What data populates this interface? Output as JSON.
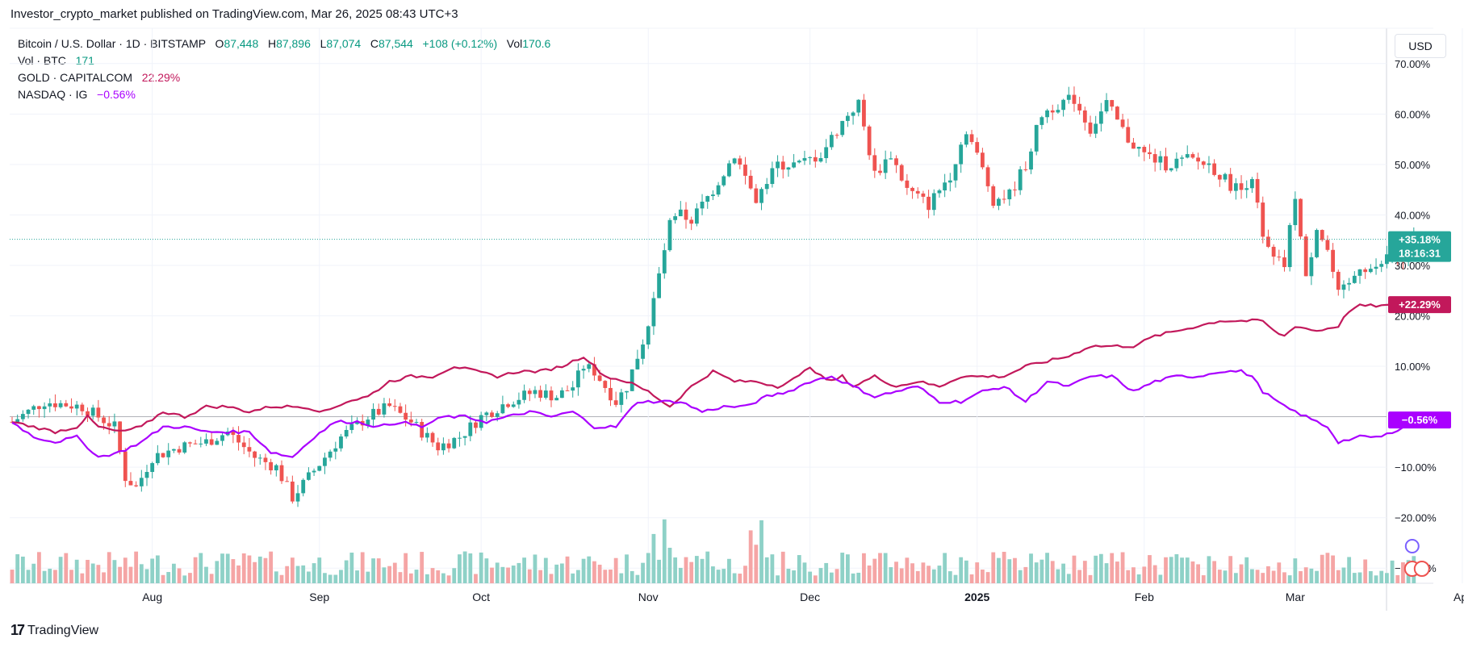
{
  "header": {
    "published_by": "Investor_crypto_market published on TradingView.com, Mar 26, 2025 08:43 UTC+3"
  },
  "legend": {
    "main_symbol": "Bitcoin / U.S. Dollar · 1D · BITSTAMP",
    "open_label": "O",
    "open": "87,448",
    "high_label": "H",
    "high": "87,896",
    "low_label": "L",
    "low": "87,074",
    "close_label": "C",
    "close": "87,544",
    "change": "+108 (+0.12%)",
    "vol_label": "Vol",
    "vol": "170.6",
    "volume_series": "Vol · BTC",
    "volume_value": "171",
    "gold_series": "GOLD · CAPITALCOM",
    "gold_value": "22.29%",
    "nasdaq_series": "NASDAQ · IG",
    "nasdaq_value": "−0.56%"
  },
  "currency_button": "USD",
  "branding": {
    "logo_text": "TradingView"
  },
  "colors": {
    "up": "#26a69a",
    "down": "#ef5350",
    "gold": "#c2185b",
    "nasdaq": "#aa00ff",
    "volume_up": "#8ed1c7",
    "volume_down": "#f5a5a5"
  },
  "chart_data": {
    "type": "candlestick",
    "title": "Bitcoin / U.S. Dollar · 1D · BITSTAMP",
    "ylabel": "Percent change",
    "ylim": [
      -33,
      77
    ],
    "y_ticks": [
      "70.00%",
      "60.00%",
      "50.00%",
      "40.00%",
      "30.00%",
      "20.00%",
      "10.00%",
      "−10.00%",
      "−20.00%",
      "−30.00%"
    ],
    "y_tick_values": [
      70,
      60,
      50,
      40,
      30,
      20,
      10,
      -10,
      -20,
      -30
    ],
    "x_labels": [
      {
        "label": "Aug",
        "day": 26
      },
      {
        "label": "Sep",
        "day": 57
      },
      {
        "label": "Oct",
        "day": 87
      },
      {
        "label": "Nov",
        "day": 118
      },
      {
        "label": "Dec",
        "day": 148
      },
      {
        "label": "2025",
        "day": 179
      },
      {
        "label": "Feb",
        "day": 210
      },
      {
        "label": "Mar",
        "day": 238
      },
      {
        "label": "Apr",
        "day": 269
      }
    ],
    "total_days": 254,
    "price_keyframes": [
      [
        0,
        -1
      ],
      [
        6,
        3
      ],
      [
        13,
        2
      ],
      [
        19,
        -2
      ],
      [
        21,
        -12
      ],
      [
        23,
        -14
      ],
      [
        26,
        -8
      ],
      [
        31,
        -6
      ],
      [
        36,
        -5
      ],
      [
        40,
        -3
      ],
      [
        45,
        -8
      ],
      [
        49,
        -10
      ],
      [
        52,
        -16
      ],
      [
        55,
        -12
      ],
      [
        58,
        -8
      ],
      [
        61,
        -4
      ],
      [
        66,
        0
      ],
      [
        70,
        2
      ],
      [
        74,
        -1
      ],
      [
        79,
        -6
      ],
      [
        83,
        -4
      ],
      [
        87,
        0
      ],
      [
        92,
        3
      ],
      [
        97,
        5
      ],
      [
        101,
        4
      ],
      [
        104,
        6
      ],
      [
        106,
        10
      ],
      [
        108,
        9
      ],
      [
        110,
        6
      ],
      [
        112,
        3
      ],
      [
        114,
        6
      ],
      [
        116,
        12
      ],
      [
        118,
        18
      ],
      [
        120,
        28
      ],
      [
        122,
        38
      ],
      [
        124,
        40
      ],
      [
        126,
        39
      ],
      [
        130,
        45
      ],
      [
        134,
        52
      ],
      [
        138,
        43
      ],
      [
        142,
        50
      ],
      [
        146,
        50
      ],
      [
        150,
        52
      ],
      [
        155,
        60
      ],
      [
        157,
        62
      ],
      [
        160,
        48
      ],
      [
        163,
        52
      ],
      [
        166,
        45
      ],
      [
        170,
        42
      ],
      [
        174,
        48
      ],
      [
        177,
        57
      ],
      [
        180,
        49
      ],
      [
        182,
        43
      ],
      [
        185,
        44
      ],
      [
        188,
        50
      ],
      [
        191,
        60
      ],
      [
        194,
        62
      ],
      [
        197,
        63
      ],
      [
        200,
        57
      ],
      [
        203,
        62
      ],
      [
        207,
        55
      ],
      [
        210,
        52
      ],
      [
        214,
        50
      ],
      [
        218,
        51
      ],
      [
        222,
        50
      ],
      [
        226,
        46
      ],
      [
        228,
        45
      ],
      [
        230,
        48
      ],
      [
        232,
        35
      ],
      [
        234,
        31
      ],
      [
        236,
        30
      ],
      [
        238,
        44
      ],
      [
        240,
        27
      ],
      [
        242,
        38
      ],
      [
        244,
        33
      ],
      [
        246,
        24
      ],
      [
        248,
        26
      ],
      [
        250,
        30
      ],
      [
        253,
        29
      ],
      [
        256,
        33
      ],
      [
        258,
        30
      ],
      [
        260,
        35.18
      ]
    ],
    "gold_keyframes": [
      [
        0,
        -1
      ],
      [
        4,
        -2
      ],
      [
        8,
        -3
      ],
      [
        12,
        -2
      ],
      [
        14,
        0
      ],
      [
        16,
        -2
      ],
      [
        20,
        -3
      ],
      [
        24,
        -2
      ],
      [
        28,
        1
      ],
      [
        32,
        0
      ],
      [
        36,
        2
      ],
      [
        40,
        2
      ],
      [
        44,
        1
      ],
      [
        48,
        2
      ],
      [
        54,
        2
      ],
      [
        58,
        1
      ],
      [
        62,
        3
      ],
      [
        66,
        4
      ],
      [
        70,
        7
      ],
      [
        74,
        8
      ],
      [
        78,
        8
      ],
      [
        82,
        10
      ],
      [
        86,
        9
      ],
      [
        90,
        8
      ],
      [
        94,
        9
      ],
      [
        98,
        9
      ],
      [
        102,
        10
      ],
      [
        106,
        12
      ],
      [
        110,
        8
      ],
      [
        114,
        7
      ],
      [
        118,
        5
      ],
      [
        122,
        2
      ],
      [
        126,
        6
      ],
      [
        130,
        9
      ],
      [
        134,
        7
      ],
      [
        138,
        7
      ],
      [
        142,
        6
      ],
      [
        146,
        8
      ],
      [
        148,
        10
      ],
      [
        150,
        8
      ],
      [
        152,
        7
      ],
      [
        154,
        8
      ],
      [
        156,
        6
      ],
      [
        158,
        7
      ],
      [
        160,
        8
      ],
      [
        164,
        6
      ],
      [
        168,
        7
      ],
      [
        172,
        6
      ],
      [
        176,
        8
      ],
      [
        180,
        8
      ],
      [
        184,
        8
      ],
      [
        188,
        10
      ],
      [
        192,
        11
      ],
      [
        196,
        12
      ],
      [
        200,
        14
      ],
      [
        204,
        14
      ],
      [
        208,
        14
      ],
      [
        212,
        16
      ],
      [
        216,
        17
      ],
      [
        220,
        18
      ],
      [
        224,
        19
      ],
      [
        228,
        19
      ],
      [
        232,
        19
      ],
      [
        234,
        17
      ],
      [
        236,
        16
      ],
      [
        238,
        18
      ],
      [
        242,
        17
      ],
      [
        246,
        18
      ],
      [
        248,
        21
      ],
      [
        250,
        22
      ],
      [
        254,
        22
      ],
      [
        256,
        22
      ],
      [
        260,
        22.29
      ]
    ],
    "nasdaq_keyframes": [
      [
        0,
        -1
      ],
      [
        4,
        -4
      ],
      [
        8,
        -5
      ],
      [
        12,
        -4
      ],
      [
        16,
        -8
      ],
      [
        20,
        -7
      ],
      [
        24,
        -5
      ],
      [
        28,
        -2
      ],
      [
        32,
        -2
      ],
      [
        36,
        -3
      ],
      [
        40,
        -3
      ],
      [
        44,
        -3
      ],
      [
        48,
        -7
      ],
      [
        52,
        -8
      ],
      [
        56,
        -4
      ],
      [
        60,
        -1
      ],
      [
        64,
        -1
      ],
      [
        68,
        -2
      ],
      [
        72,
        -1
      ],
      [
        76,
        -2
      ],
      [
        80,
        0
      ],
      [
        84,
        0
      ],
      [
        88,
        -1
      ],
      [
        92,
        0
      ],
      [
        96,
        1
      ],
      [
        100,
        0
      ],
      [
        104,
        1
      ],
      [
        108,
        -2
      ],
      [
        112,
        -2
      ],
      [
        116,
        3
      ],
      [
        120,
        3
      ],
      [
        124,
        3
      ],
      [
        128,
        1
      ],
      [
        132,
        2
      ],
      [
        136,
        2
      ],
      [
        140,
        4
      ],
      [
        144,
        5
      ],
      [
        148,
        7
      ],
      [
        152,
        8
      ],
      [
        156,
        6
      ],
      [
        160,
        4
      ],
      [
        164,
        5
      ],
      [
        168,
        6
      ],
      [
        172,
        3
      ],
      [
        176,
        3
      ],
      [
        180,
        5
      ],
      [
        184,
        6
      ],
      [
        188,
        3
      ],
      [
        192,
        7
      ],
      [
        196,
        6
      ],
      [
        200,
        8
      ],
      [
        204,
        8
      ],
      [
        208,
        5
      ],
      [
        212,
        7
      ],
      [
        216,
        8
      ],
      [
        220,
        8
      ],
      [
        224,
        9
      ],
      [
        228,
        9
      ],
      [
        230,
        8
      ],
      [
        232,
        5
      ],
      [
        236,
        2
      ],
      [
        240,
        0
      ],
      [
        244,
        -2
      ],
      [
        246,
        -5
      ],
      [
        250,
        -4
      ],
      [
        254,
        -4
      ],
      [
        258,
        -2
      ],
      [
        260,
        -0.56
      ]
    ],
    "series_last": {
      "price": "+35.18%",
      "countdown": "18:16:31",
      "gold": "+22.29%",
      "nasdaq": "−0.56%"
    }
  }
}
